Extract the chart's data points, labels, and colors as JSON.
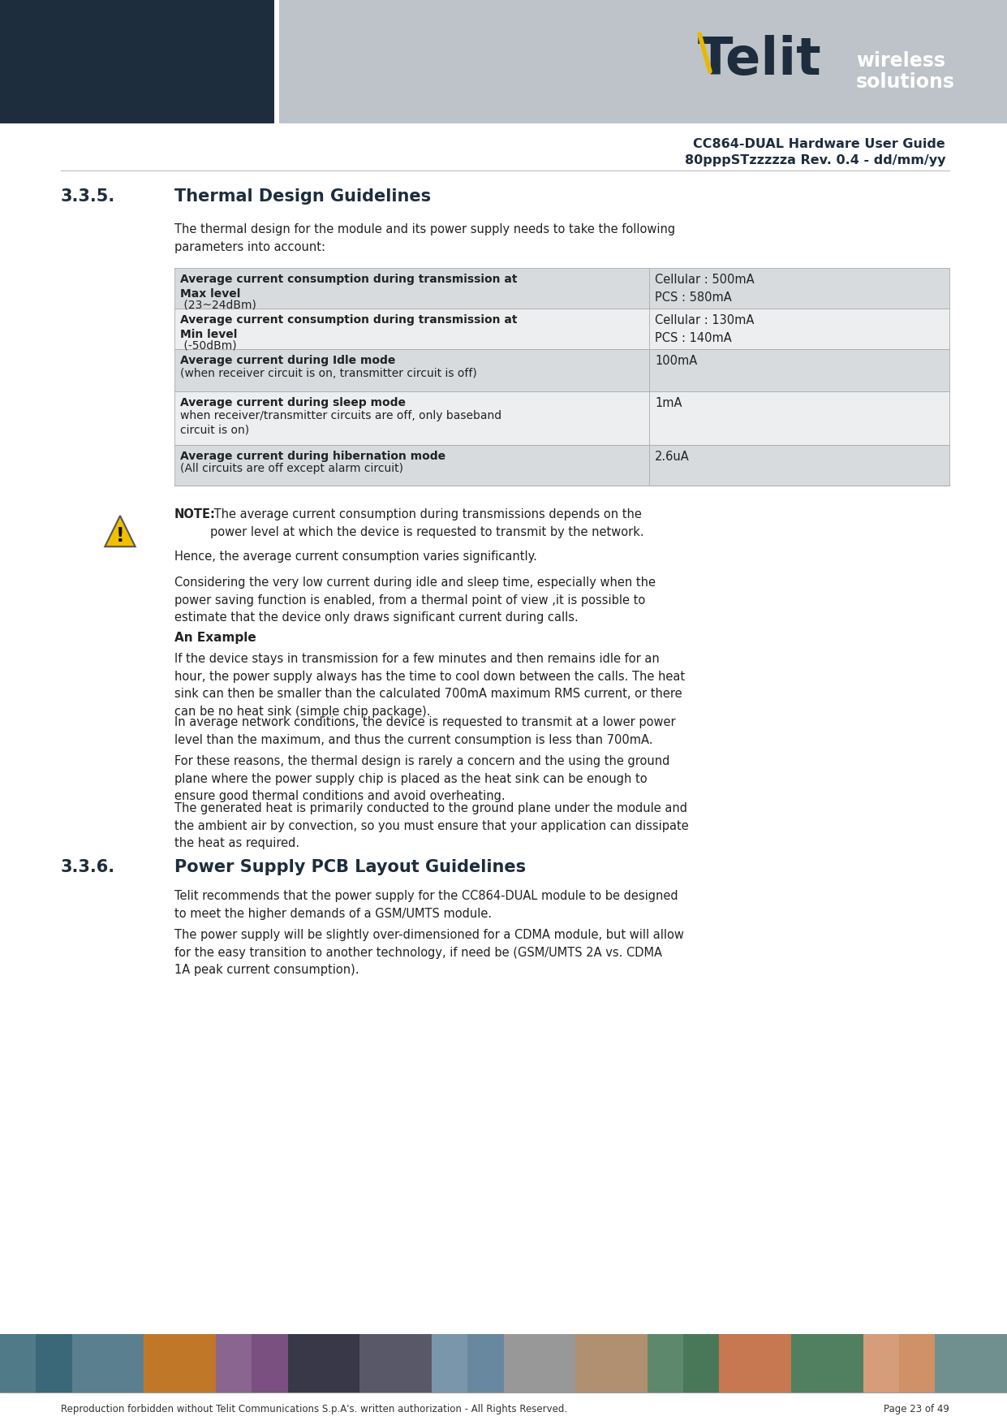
{
  "header_dark_color": "#1e2d3d",
  "header_light_color": "#bec3c9",
  "telit_color": "#1e2d3d",
  "yellow_color": "#e8b800",
  "white": "#ffffff",
  "black": "#000000",
  "table_row_bg1": "#d8dbde",
  "table_row_bg2": "#eceef0",
  "table_border": "#aaaaaa",
  "section_title_color": "#1e2d3d",
  "body_text_color": "#222222",
  "footer_text_color": "#333333",
  "doc_title": "CC864-DUAL Hardware User Guide",
  "doc_subtitle": "80pppSTzzzzza Rev. 0.4 - dd/mm/yy",
  "section_335_num": "3.3.5.",
  "section_335_title": "Thermal Design Guidelines",
  "section_335_intro": "The thermal design for the module and its power supply needs to take the following\nparameters into account:",
  "table_rows": [
    {
      "left_bold": "Average current consumption during transmission at\nMax level",
      "left_normal": " (23~24dBm)",
      "right": "Cellular : 500mA\nPCS : 580mA"
    },
    {
      "left_bold": "Average current consumption during transmission at\nMin level",
      "left_normal": " (-50dBm)",
      "right": "Cellular : 130mA\nPCS : 140mA"
    },
    {
      "left_bold": "Average current during Idle mode",
      "left_normal": "\n(when receiver circuit is on, transmitter circuit is off)",
      "right": "100mA"
    },
    {
      "left_bold": "Average current during sleep mode",
      "left_normal": "\nwhen receiver/transmitter circuits are off, only baseband\ncircuit is on)",
      "right": "1mA"
    },
    {
      "left_bold": "Average current during hibernation mode",
      "left_normal": "\n(All circuits are off except alarm circuit)",
      "right": "2.6uA"
    }
  ],
  "note_bold": "NOTE:",
  "note_text": " The average current consumption during transmissions depends on the\npower level at which the device is requested to transmit by the network.",
  "para1": "Hence, the average current consumption varies significantly.",
  "para2": "Considering the very low current during idle and sleep time, especially when the\npower saving function is enabled, from a thermal point of view ,it is possible to\nestimate that the device only draws significant current during calls.",
  "example_title": "An Example",
  "example_para1": "If the device stays in transmission for a few minutes and then remains idle for an\nhour, the power supply always has the time to cool down between the calls. The heat\nsink can then be smaller than the calculated 700mA maximum RMS current, or there\ncan be no heat sink (simple chip package).",
  "example_para2": "In average network conditions, the device is requested to transmit at a lower power\nlevel than the maximum, and thus the current consumption is less than 700mA.",
  "example_para3": "For these reasons, the thermal design is rarely a concern and the using the ground\nplane where the power supply chip is placed as the heat sink can be enough to\nensure good thermal conditions and avoid overheating.",
  "example_para4": "The generated heat is primarily conducted to the ground plane under the module and\nthe ambient air by convection, so you must ensure that your application can dissipate\nthe heat as required.",
  "section_336_num": "3.3.6.",
  "section_336_title": "Power Supply PCB Layout Guidelines",
  "section_336_para1": "Telit recommends that the power supply for the CC864-DUAL module to be designed\nto meet the higher demands of a GSM/UMTS module.",
  "section_336_para2": "The power supply will be slightly over-dimensioned for a CDMA module, but will allow\nfor the easy transition to another technology, if need be (GSM/UMTS 2A vs. CDMA\n1A peak current consumption).",
  "footer_left": "Reproduction forbidden without Telit Communications S.p.A's. written authorization - All Rights Reserved.",
  "footer_right": "Page 23 of 49",
  "footer_strip_colors": [
    "#3a6878",
    "#5a8090",
    "#c07828",
    "#7a5080",
    "#383848",
    "#585868",
    "#6888a0",
    "#989898",
    "#b09070",
    "#487858",
    "#c87850",
    "#508060",
    "#d09068",
    "#709090"
  ]
}
